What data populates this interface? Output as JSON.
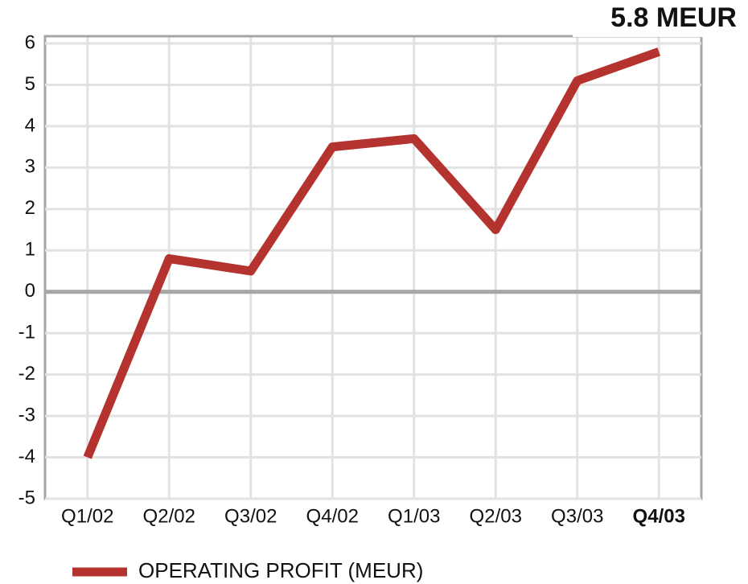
{
  "chart_data": {
    "type": "line",
    "annotation": "5.8 MEUR",
    "categories": [
      "Q1/02",
      "Q2/02",
      "Q3/02",
      "Q4/02",
      "Q1/03",
      "Q2/03",
      "Q3/03",
      "Q4/03"
    ],
    "series": [
      {
        "name": "OPERATING PROFIT (MEUR)",
        "color": "#b5332e",
        "values": [
          -4.0,
          0.8,
          0.5,
          3.5,
          3.7,
          1.5,
          5.1,
          5.8
        ]
      }
    ],
    "ylim": [
      -5,
      6
    ],
    "yticks": [
      -5,
      -4,
      -3,
      -2,
      -1,
      0,
      1,
      2,
      3,
      4,
      5,
      6
    ],
    "grid": true
  }
}
